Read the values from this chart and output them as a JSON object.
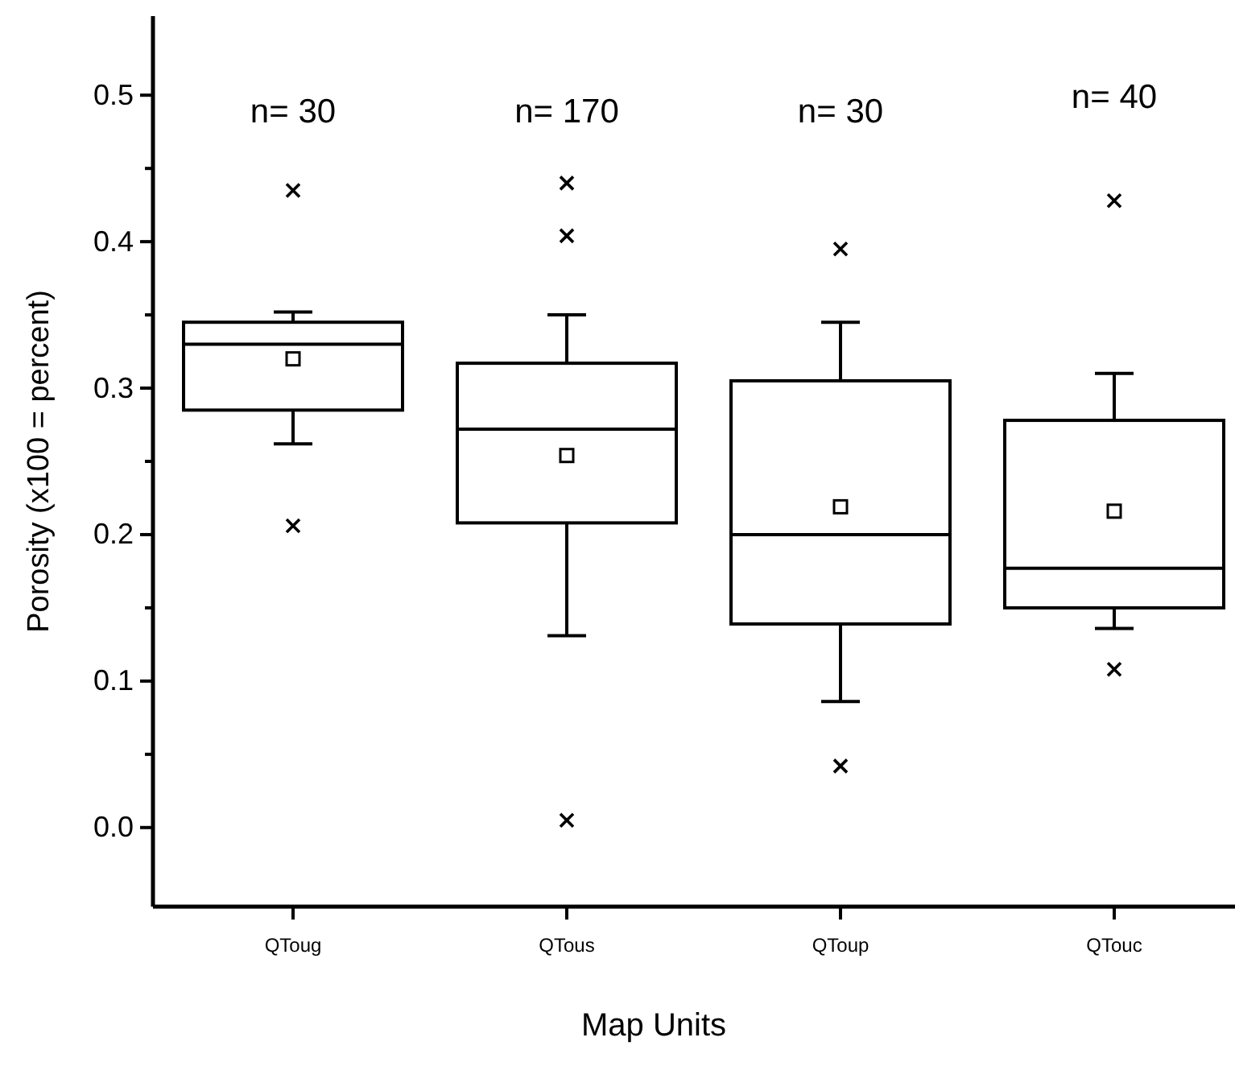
{
  "chart_data": {
    "type": "box",
    "xlabel": "Map Units",
    "ylabel": "Porosity (x100 = percent)",
    "categories": [
      "QToug",
      "QTous",
      "QToup",
      "QTouc"
    ],
    "boxes": [
      {
        "low": 0.262,
        "q1": 0.285,
        "median": 0.33,
        "q3": 0.345,
        "high": 0.352,
        "mean": 0.32,
        "outliers": [
          0.435,
          0.206
        ]
      },
      {
        "low": 0.131,
        "q1": 0.208,
        "median": 0.272,
        "q3": 0.317,
        "high": 0.35,
        "mean": 0.254,
        "outliers": [
          0.44,
          0.404,
          0.005
        ]
      },
      {
        "low": 0.086,
        "q1": 0.139,
        "median": 0.2,
        "q3": 0.305,
        "high": 0.345,
        "mean": 0.219,
        "outliers": [
          0.395,
          0.042
        ]
      },
      {
        "low": 0.136,
        "q1": 0.15,
        "median": 0.177,
        "q3": 0.278,
        "high": 0.31,
        "mean": 0.216,
        "outliers": [
          0.428,
          0.108
        ]
      }
    ],
    "color": "#000000",
    "ylim": [
      -0.054,
      0.554
    ],
    "yticks": [
      {
        "value": 0,
        "label": "0.0"
      },
      {
        "value": 0.05,
        "label": null
      },
      0.1,
      {
        "value": 0.15,
        "label": null
      },
      0.2,
      {
        "value": 0.25,
        "label": null
      },
      0.3,
      {
        "value": 0.35,
        "label": null
      },
      0.4,
      {
        "value": 0.45,
        "label": null
      },
      0.5
    ],
    "annotations": [
      "n= 30",
      "n= 170",
      "n= 30",
      "n= 40"
    ]
  }
}
